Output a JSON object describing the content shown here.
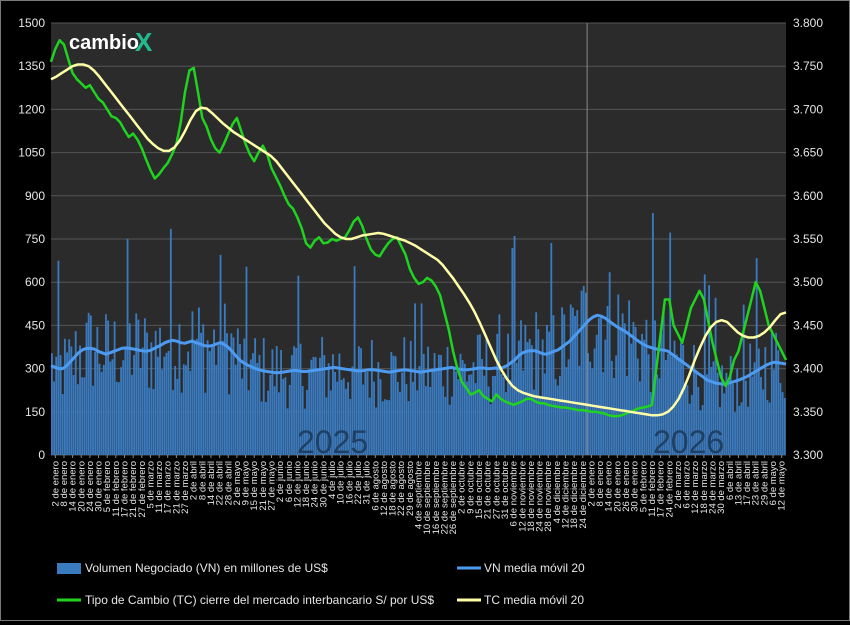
{
  "logo": {
    "text": "cambio",
    "mark": "X"
  },
  "colors": {
    "background": "#000000",
    "plot_bg": "#2b2b2b",
    "volume": "#3a7abf",
    "vn_avg": "#4d9bf0",
    "tc": "#1fd31f",
    "tc_avg": "#ffffa8",
    "year_text": "#1f3f63"
  },
  "years": [
    "2025",
    "2026"
  ],
  "legend": {
    "vn": "Volumen Negociado (VN) en millones de US$",
    "vn_avg": "VN media móvil 20",
    "tc": "Tipo de Cambio (TC) cierre del mercado interbancario S/ por US$",
    "tc_avg": "TC media móvil 20"
  },
  "chart_data": {
    "type": "bar+line",
    "y_left": {
      "range": [
        0,
        1500
      ],
      "ticks": [
        "0",
        "150",
        "300",
        "450",
        "600",
        "750",
        "900",
        "1050",
        "1200",
        "1350",
        "1500"
      ]
    },
    "y_right": {
      "range": [
        3.3,
        3.8
      ],
      "ticks": [
        "3.300",
        "3.350",
        "3.400",
        "3.450",
        "3.500",
        "3.550",
        "3.600",
        "3.650",
        "3.700",
        "3.750",
        "3.800"
      ]
    },
    "x_ticks": [
      "2 de enero",
      "8 de enero",
      "14 de enero",
      "20 de enero",
      "24 de enero",
      "30 de enero",
      "5 de febrero",
      "11 de febrero",
      "17 de febrero",
      "21 de febrero",
      "27 de febrero",
      "5 de marzo",
      "11 de marzo",
      "17 de marzo",
      "21 de marzo",
      "27 de marzo",
      "2 de abril",
      "8 de abril",
      "14 de abril",
      "22 de abril",
      "28 de abril",
      "2 de mayo",
      "9 de mayo",
      "15 de mayo",
      "21 de mayo",
      "27 de mayo",
      "2 de junio",
      "6 de junio",
      "12 de junio",
      "18 de junio",
      "24 de junio",
      "30 de junio",
      "4 de julio",
      "10 de julio",
      "16 de julio",
      "22 de julio",
      "31 de julio",
      "6 de agosto",
      "12 de agosto",
      "18 de agosto",
      "22 de agosto",
      "29 de agosto",
      "4 de septiembre",
      "10 de septiembre",
      "16 de septiembre",
      "22 de septiembre",
      "26 de septiembre",
      "2 de octubre",
      "9 de octubre",
      "15 de octubre",
      "21 de octubre",
      "27 de octubre",
      "31 de octubre",
      "6 de noviembre",
      "12 de noviembre",
      "18 de noviembre",
      "24 de noviembre",
      "28 de noviembre",
      "4 de diciembre",
      "12 de diciembre",
      "18 de diciembre",
      "24 de diciembre",
      "2 de enero",
      "8 de enero",
      "14 de enero",
      "20 de enero",
      "26 de enero",
      "30 de enero",
      "5 de febrero",
      "11 de febrero",
      "17 de febrero",
      "24 de febrero",
      "2 de marzo",
      "6 de marzo",
      "12 de marzo",
      "18 de marzo",
      "24 de marzo",
      "30 de marzo",
      "6 de abril",
      "13 de abril",
      "17 de abril",
      "23 de abril",
      "29 de abril",
      "6 de mayo",
      "12 de mayo"
    ],
    "year_split_tick": 62,
    "tc_close": [
      3.755,
      3.77,
      3.78,
      3.775,
      3.758,
      3.742,
      3.735,
      3.73,
      3.725,
      3.728,
      3.72,
      3.712,
      3.708,
      3.7,
      3.692,
      3.69,
      3.685,
      3.676,
      3.668,
      3.672,
      3.665,
      3.655,
      3.642,
      3.63,
      3.62,
      3.625,
      3.632,
      3.638,
      3.648,
      3.66,
      3.685,
      3.72,
      3.745,
      3.748,
      3.72,
      3.69,
      3.68,
      3.665,
      3.655,
      3.65,
      3.66,
      3.672,
      3.683,
      3.69,
      3.675,
      3.66,
      3.648,
      3.64,
      3.65,
      3.658,
      3.648,
      3.632,
      3.622,
      3.612,
      3.6,
      3.59,
      3.585,
      3.575,
      3.562,
      3.545,
      3.54,
      3.548,
      3.552,
      3.545,
      3.546,
      3.55,
      3.548,
      3.55,
      3.552,
      3.56,
      3.57,
      3.575,
      3.565,
      3.55,
      3.538,
      3.532,
      3.53,
      3.538,
      3.545,
      3.55,
      3.552,
      3.542,
      3.532,
      3.515,
      3.505,
      3.498,
      3.5,
      3.505,
      3.502,
      3.495,
      3.485,
      3.465,
      3.445,
      3.42,
      3.4,
      3.385,
      3.378,
      3.37,
      3.372,
      3.375,
      3.368,
      3.365,
      3.362,
      3.37,
      3.365,
      3.362,
      3.36,
      3.358,
      3.36,
      3.362,
      3.365,
      3.365,
      3.362,
      3.36,
      3.36,
      3.358,
      3.357,
      3.356,
      3.355,
      3.355,
      3.354,
      3.353,
      3.352,
      3.352,
      3.351,
      3.35,
      3.35,
      3.349,
      3.348,
      3.346,
      3.345,
      3.345,
      3.346,
      3.348,
      3.35,
      3.352,
      3.354,
      3.355,
      3.356,
      3.358,
      3.4,
      3.44,
      3.48,
      3.48,
      3.45,
      3.44,
      3.43,
      3.45,
      3.47,
      3.48,
      3.49,
      3.48,
      3.455,
      3.43,
      3.41,
      3.39,
      3.38,
      3.39,
      3.41,
      3.42,
      3.44,
      3.46,
      3.48,
      3.5,
      3.49,
      3.47,
      3.45,
      3.44,
      3.43,
      3.42,
      3.41
    ],
    "tc_avg20": [
      3.735,
      3.738,
      3.742,
      3.746,
      3.75,
      3.752,
      3.752,
      3.75,
      3.745,
      3.738,
      3.73,
      3.722,
      3.714,
      3.706,
      3.698,
      3.69,
      3.682,
      3.674,
      3.666,
      3.66,
      3.655,
      3.652,
      3.652,
      3.656,
      3.664,
      3.675,
      3.688,
      3.698,
      3.702,
      3.701,
      3.696,
      3.69,
      3.684,
      3.679,
      3.674,
      3.67,
      3.666,
      3.662,
      3.658,
      3.654,
      3.65,
      3.646,
      3.64,
      3.632,
      3.624,
      3.616,
      3.608,
      3.6,
      3.592,
      3.584,
      3.576,
      3.568,
      3.562,
      3.556,
      3.552,
      3.55,
      3.55,
      3.552,
      3.554,
      3.555,
      3.556,
      3.557,
      3.556,
      3.554,
      3.552,
      3.55,
      3.548,
      3.545,
      3.542,
      3.538,
      3.534,
      3.53,
      3.526,
      3.52,
      3.512,
      3.504,
      3.495,
      3.486,
      3.476,
      3.465,
      3.452,
      3.438,
      3.424,
      3.41,
      3.398,
      3.388,
      3.38,
      3.375,
      3.372,
      3.37,
      3.368,
      3.367,
      3.366,
      3.365,
      3.364,
      3.363,
      3.362,
      3.361,
      3.36,
      3.359,
      3.358,
      3.357,
      3.356,
      3.355,
      3.354,
      3.353,
      3.352,
      3.351,
      3.35,
      3.349,
      3.348,
      3.347,
      3.346,
      3.346,
      3.347,
      3.35,
      3.356,
      3.365,
      3.378,
      3.393,
      3.41,
      3.425,
      3.438,
      3.448,
      3.454,
      3.456,
      3.454,
      3.448,
      3.442,
      3.438,
      3.436,
      3.436,
      3.438,
      3.442,
      3.448,
      3.456,
      3.463,
      3.465
    ],
    "vn_avg20": [
      310,
      305,
      300,
      300,
      310,
      325,
      340,
      355,
      365,
      370,
      370,
      368,
      360,
      355,
      350,
      355,
      360,
      365,
      370,
      372,
      370,
      368,
      365,
      362,
      360,
      362,
      368,
      375,
      382,
      390,
      395,
      398,
      395,
      390,
      388,
      392,
      396,
      390,
      385,
      380,
      378,
      380,
      385,
      390,
      385,
      375,
      360,
      345,
      330,
      320,
      312,
      306,
      300,
      296,
      292,
      290,
      288,
      286,
      286,
      288,
      290,
      292,
      294,
      292,
      290,
      290,
      292,
      294,
      296,
      298,
      300,
      302,
      304,
      302,
      300,
      298,
      296,
      294,
      292,
      292,
      294,
      296,
      296,
      294,
      292,
      290,
      288,
      290,
      292,
      294,
      296,
      294,
      292,
      290,
      288,
      290,
      292,
      294,
      296,
      298,
      300,
      302,
      304,
      300,
      298,
      296,
      296,
      298,
      300,
      302,
      302,
      300,
      300,
      302,
      300,
      304,
      310,
      320,
      330,
      345,
      355,
      360,
      362,
      362,
      358,
      352,
      350,
      355,
      360,
      365,
      375,
      385,
      395,
      410,
      425,
      440,
      455,
      470,
      480,
      485,
      482,
      475,
      465,
      455,
      445,
      438,
      430,
      420,
      410,
      400,
      390,
      382,
      376,
      372,
      368,
      366,
      364,
      360,
      350,
      340,
      330,
      320,
      310,
      300,
      290,
      280,
      270,
      260,
      255,
      250,
      248,
      246,
      248,
      252,
      256,
      260,
      266,
      272,
      280,
      288,
      296,
      304,
      312,
      318,
      322,
      320,
      318,
      316
    ]
  }
}
